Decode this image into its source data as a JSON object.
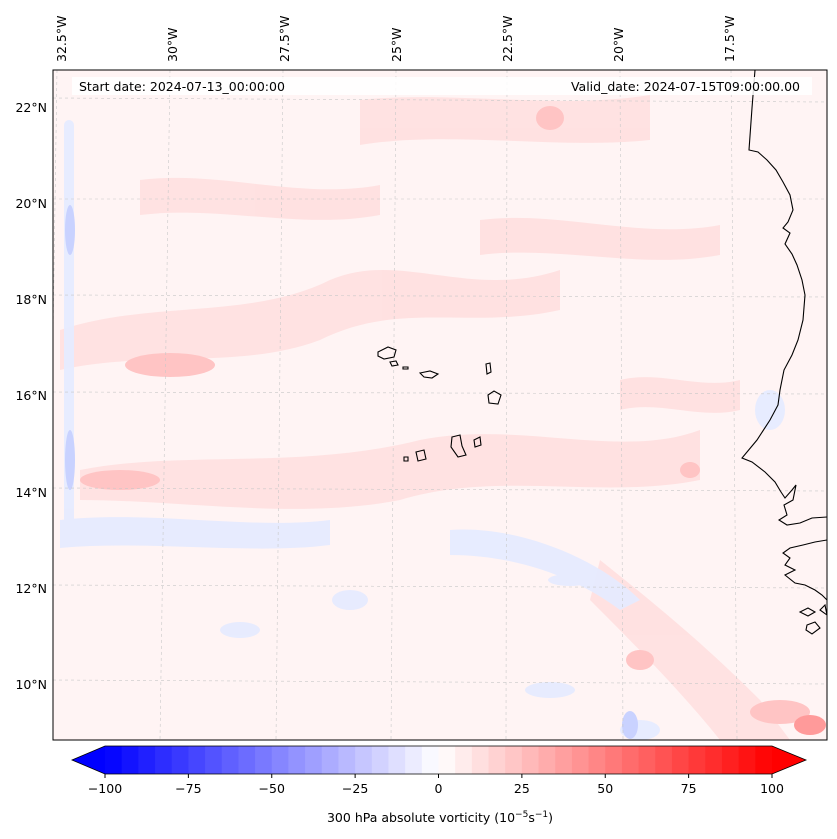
{
  "header": {
    "start_date": "Start date: 2024-07-13_00:00:00",
    "valid_date": "Valid_date: 2024-07-15T09:00:00.00"
  },
  "longitude_labels": [
    "32.5°W",
    "30°W",
    "27.5°W",
    "25°W",
    "22.5°W",
    "20°W",
    "17.5°W"
  ],
  "latitude_labels": [
    "22°N",
    "20°N",
    "18°N",
    "16°N",
    "14°N",
    "12°N",
    "10°N"
  ],
  "colorbar": {
    "label": "300 hPa absolute vorticity (10",
    "label_exp1": "−5",
    "label_mid": "s",
    "label_exp2": "−1",
    "label_end": ")",
    "min": -100,
    "max": 100,
    "ticks": [
      "−100",
      "−75",
      "−50",
      "−25",
      "0",
      "25",
      "50",
      "75",
      "100"
    ],
    "negative_color": "#0000ff",
    "neutral_color": "#ffffff",
    "positive_color": "#ff0000",
    "extend": "both"
  },
  "colors": {
    "coastline": "#000000",
    "gridline": "#c8c8c8",
    "background_tint": "#fff3f3"
  }
}
